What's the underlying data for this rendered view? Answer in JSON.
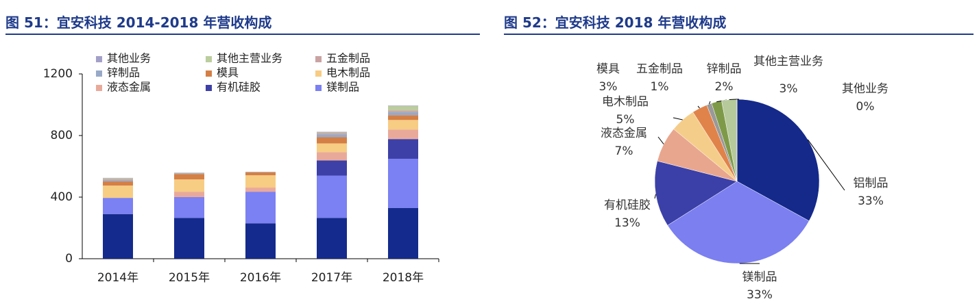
{
  "chart_data": [
    {
      "type": "bar",
      "title": "图 51：宜安科技 2014-2018 年营收构成",
      "categories": [
        "2014年",
        "2015年",
        "2016年",
        "2017年",
        "2018年"
      ],
      "series": [
        {
          "color": "#142a8c",
          "values": [
            290,
            265,
            230,
            265,
            329
          ]
        },
        {
          "name": "镁制品",
          "color": "#7b80f2",
          "values": [
            105,
            135,
            205,
            275,
            320
          ]
        },
        {
          "name": "有机硅胶",
          "color": "#3d40a6",
          "values": [
            0,
            0,
            0,
            98,
            128
          ]
        },
        {
          "name": "液态金属",
          "color": "#e9a99a",
          "values": [
            0,
            35,
            27,
            53,
            62
          ]
        },
        {
          "name": "电木制品",
          "color": "#f7cc83",
          "values": [
            80,
            80,
            80,
            58,
            62
          ]
        },
        {
          "name": "模具",
          "color": "#d47f45",
          "values": [
            28,
            35,
            18,
            40,
            31
          ]
        },
        {
          "name": "锌制品",
          "color": "#98a9c8",
          "values": [
            8,
            4,
            2,
            18,
            20
          ]
        },
        {
          "name": "五金制品",
          "color": "#c9a3a3",
          "values": [
            6,
            3,
            2,
            9,
            10
          ]
        },
        {
          "name": "其他主营业务",
          "color": "#bccd9e",
          "values": [
            5,
            2,
            1,
            4,
            30
          ]
        },
        {
          "name": "其他业务",
          "color": "#a3a0c8",
          "values": [
            3,
            1,
            0,
            4,
            3
          ]
        }
      ],
      "ylim": [
        0,
        1200
      ],
      "yticks": [
        0,
        400,
        800,
        1200
      ]
    },
    {
      "type": "pie",
      "title": "图 52：宜安科技 2018 年营收构成",
      "categories": [
        "铝制品",
        "镁制品",
        "有机硅胶",
        "液态金属",
        "电木制品",
        "模具",
        "五金制品",
        "锌制品",
        "其他主营业务",
        "其他业务"
      ],
      "values": [
        33,
        33,
        13,
        7,
        5,
        3,
        1,
        2,
        3,
        0
      ],
      "value_labels": [
        "33%",
        "33%",
        "13%",
        "7%",
        "5%",
        "3%",
        "1%",
        "2%",
        "3%",
        "0%"
      ],
      "colors": [
        "#14298a",
        "#7b7ff0",
        "#3b40a8",
        "#e8a68e",
        "#f5cd8a",
        "#e0834a",
        "#999999",
        "#7e9a48",
        "#b5c99a",
        "#a89cc6"
      ]
    }
  ]
}
